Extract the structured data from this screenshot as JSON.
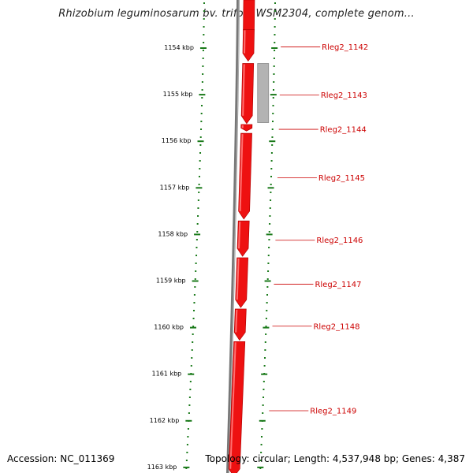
{
  "title": "Rhizobium leguminosarum bv. trifolii WSM2304, complete genom...",
  "footer": {
    "accession": "Accession: NC_011369",
    "summary": "Topology: circular; Length: 4,537,948 bp; Genes: 4,387"
  },
  "colors": {
    "gene": "#ee1111",
    "gene_dark": "#b30000",
    "backbone": "#777777",
    "grid": "#1a7a1a",
    "label": "#cc0000",
    "pseudo": "#b3b3b3"
  },
  "axis": {
    "unit": "kbp",
    "ticks": [
      {
        "kbp": 1154,
        "label": "1154 kbp"
      },
      {
        "kbp": 1155,
        "label": "1155 kbp"
      },
      {
        "kbp": 1156,
        "label": "1156 kbp"
      },
      {
        "kbp": 1157,
        "label": "1157 kbp"
      },
      {
        "kbp": 1158,
        "label": "1158 kbp"
      },
      {
        "kbp": 1159,
        "label": "1159 kbp"
      },
      {
        "kbp": 1160,
        "label": "1160 kbp"
      },
      {
        "kbp": 1161,
        "label": "1161 kbp"
      },
      {
        "kbp": 1162,
        "label": "1162 kbp"
      },
      {
        "kbp": 1163,
        "label": "1163 kbp"
      }
    ]
  },
  "genes": [
    {
      "id": "Rleg2_1142",
      "start_kbp": 1153.6,
      "end_kbp": 1154.28
    },
    {
      "id": "Rleg2_1143",
      "start_kbp": 1154.33,
      "end_kbp": 1155.62
    },
    {
      "id": "Rleg2_1144",
      "start_kbp": 1155.64,
      "end_kbp": 1155.78
    },
    {
      "id": "Rleg2_1145",
      "start_kbp": 1155.83,
      "end_kbp": 1157.67
    },
    {
      "id": "Rleg2_1146",
      "start_kbp": 1157.71,
      "end_kbp": 1158.47
    },
    {
      "id": "Rleg2_1147",
      "start_kbp": 1158.5,
      "end_kbp": 1159.57
    },
    {
      "id": "Rleg2_1148",
      "start_kbp": 1159.6,
      "end_kbp": 1160.27
    },
    {
      "id": "Rleg2_1149",
      "start_kbp": 1160.3,
      "end_kbp": 1163.2
    }
  ],
  "pseudogene": {
    "start_kbp": 1154.33,
    "end_kbp": 1155.6
  }
}
